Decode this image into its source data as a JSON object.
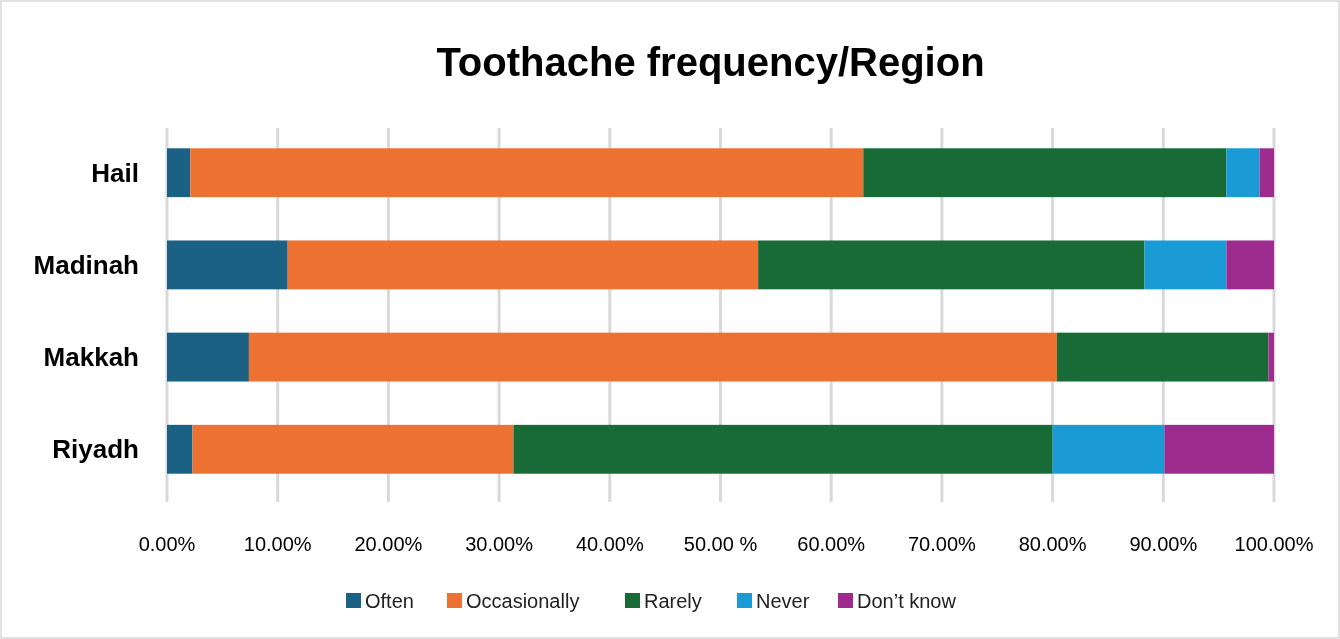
{
  "chart_data": {
    "type": "bar",
    "orientation": "horizontal",
    "stacked": true,
    "title": "Toothache frequency/Region",
    "categories": [
      "Hail",
      "Madinah",
      "Makkah",
      "Riyadh"
    ],
    "series": [
      {
        "name": "Often",
        "color": "#1b6184",
        "values": [
          2.1,
          10.9,
          7.4,
          2.3
        ]
      },
      {
        "name": "Occasionally",
        "color": "#ed7232",
        "values": [
          60.8,
          42.5,
          73.0,
          29.0
        ]
      },
      {
        "name": "Rarely",
        "color": "#186b37",
        "values": [
          32.8,
          34.9,
          19.1,
          48.7
        ]
      },
      {
        "name": "Never",
        "color": "#1b9bd6",
        "values": [
          3.0,
          7.4,
          0,
          10.1
        ]
      },
      {
        "name": "Don’t know",
        "color": "#9e2c8e",
        "values": [
          1.3,
          4.3,
          0.5,
          9.9
        ]
      }
    ],
    "xlim": [
      0,
      100
    ],
    "xticks": [
      {
        "value": 0,
        "label": "0.00%"
      },
      {
        "value": 10,
        "label": "10.00%"
      },
      {
        "value": 20,
        "label": "20.00%"
      },
      {
        "value": 30,
        "label": "30.00%"
      },
      {
        "value": 40,
        "label": "40.00%"
      },
      {
        "value": 50,
        "label": "50.00 %"
      },
      {
        "value": 60,
        "label": "60.00%"
      },
      {
        "value": 70,
        "label": "70.00%"
      },
      {
        "value": 80,
        "label": "80.00%"
      },
      {
        "value": 90,
        "label": "90.00%"
      },
      {
        "value": 100,
        "label": "100.00%"
      }
    ],
    "grid": "x",
    "legend": "bottom"
  }
}
